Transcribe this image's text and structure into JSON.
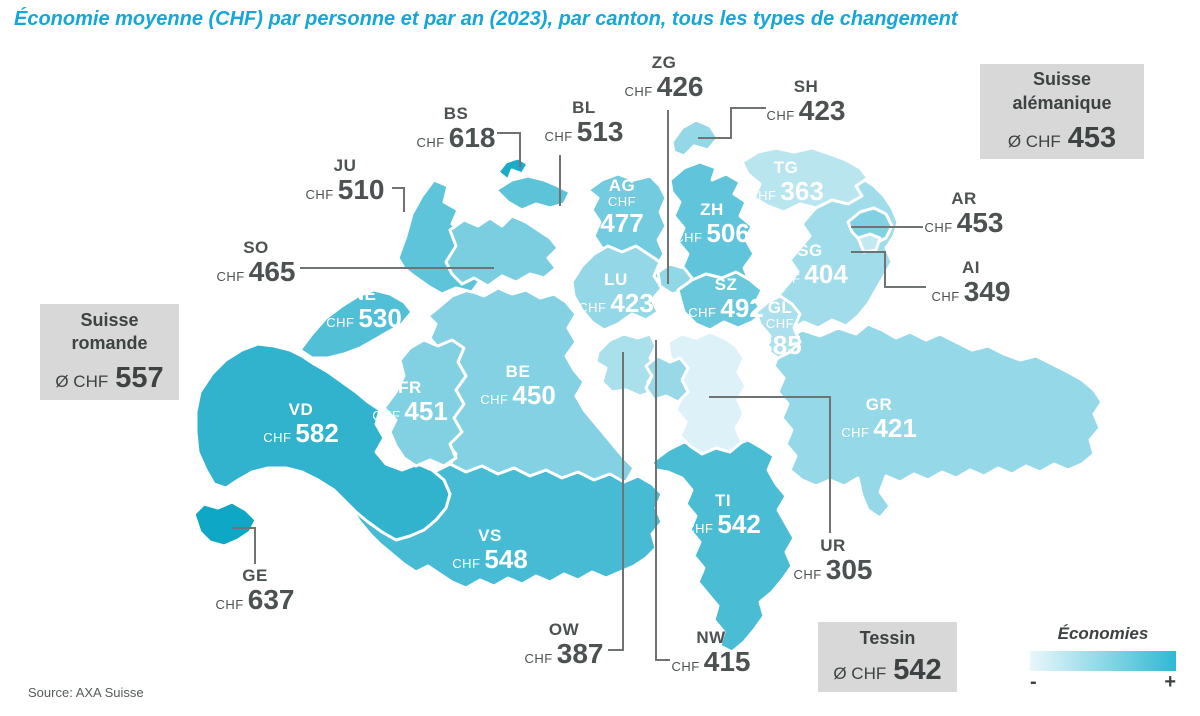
{
  "title": "Économie moyenne (CHF) par personne et par an (2023), par canton, tous les types de changement",
  "source": "Source: AXA Suisse",
  "regions": {
    "alemanique": {
      "line1": "Suisse",
      "line2": "alémanique",
      "prefix": "Ø CHF",
      "value": "453"
    },
    "romande": {
      "line1": "Suisse",
      "line2": "romande",
      "prefix": "Ø CHF",
      "value": "557"
    },
    "tessin": {
      "line1": "Tessin",
      "prefix": "Ø CHF",
      "value": "542"
    }
  },
  "legend": {
    "title": "Économies",
    "min_label": "-",
    "max_label": "+",
    "colors": [
      "#e9f7fb",
      "#2fb9d3"
    ]
  },
  "map": {
    "currency": "CHF",
    "min_value": 305,
    "max_value": 637,
    "color_min": "#ddf2f8",
    "color_max": "#0fa7c6",
    "cantons": [
      {
        "code": "ZH",
        "value": 506
      },
      {
        "code": "BE",
        "value": 450
      },
      {
        "code": "LU",
        "value": 423
      },
      {
        "code": "UR",
        "value": 305
      },
      {
        "code": "SZ",
        "value": 492
      },
      {
        "code": "OW",
        "value": 387
      },
      {
        "code": "NW",
        "value": 415
      },
      {
        "code": "GL",
        "value": 385
      },
      {
        "code": "ZG",
        "value": 426
      },
      {
        "code": "FR",
        "value": 451
      },
      {
        "code": "SO",
        "value": 465
      },
      {
        "code": "BS",
        "value": 618
      },
      {
        "code": "BL",
        "value": 513
      },
      {
        "code": "SH",
        "value": 423
      },
      {
        "code": "AR",
        "value": 453
      },
      {
        "code": "AI",
        "value": 349
      },
      {
        "code": "SG",
        "value": 404
      },
      {
        "code": "GR",
        "value": 421
      },
      {
        "code": "AG",
        "value": 477
      },
      {
        "code": "TG",
        "value": 363
      },
      {
        "code": "TI",
        "value": 542
      },
      {
        "code": "VD",
        "value": 582
      },
      {
        "code": "VS",
        "value": 548
      },
      {
        "code": "NE",
        "value": 530
      },
      {
        "code": "GE",
        "value": 637
      },
      {
        "code": "JU",
        "value": 510
      }
    ]
  },
  "chart_data": {
    "type": "heatmap",
    "title": "Économie moyenne (CHF) par personne et par an (2023), par canton, tous les types de changement",
    "unit": "CHF",
    "categories": [
      "ZH",
      "BE",
      "LU",
      "UR",
      "SZ",
      "OW",
      "NW",
      "GL",
      "ZG",
      "FR",
      "SO",
      "BS",
      "BL",
      "SH",
      "AR",
      "AI",
      "SG",
      "GR",
      "AG",
      "TG",
      "TI",
      "VD",
      "VS",
      "NE",
      "GE",
      "JU"
    ],
    "values": [
      506,
      450,
      423,
      305,
      492,
      387,
      415,
      385,
      426,
      451,
      465,
      618,
      513,
      423,
      453,
      349,
      404,
      421,
      477,
      363,
      542,
      582,
      548,
      530,
      637,
      510
    ],
    "value_range": [
      305,
      637
    ],
    "legend": {
      "title": "Économies",
      "min_label": "-",
      "max_label": "+"
    },
    "region_averages": [
      {
        "region": "Suisse alémanique",
        "value": 453
      },
      {
        "region": "Suisse romande",
        "value": 557
      },
      {
        "region": "Tessin",
        "value": 542
      }
    ],
    "source": "Source: AXA Suisse"
  }
}
